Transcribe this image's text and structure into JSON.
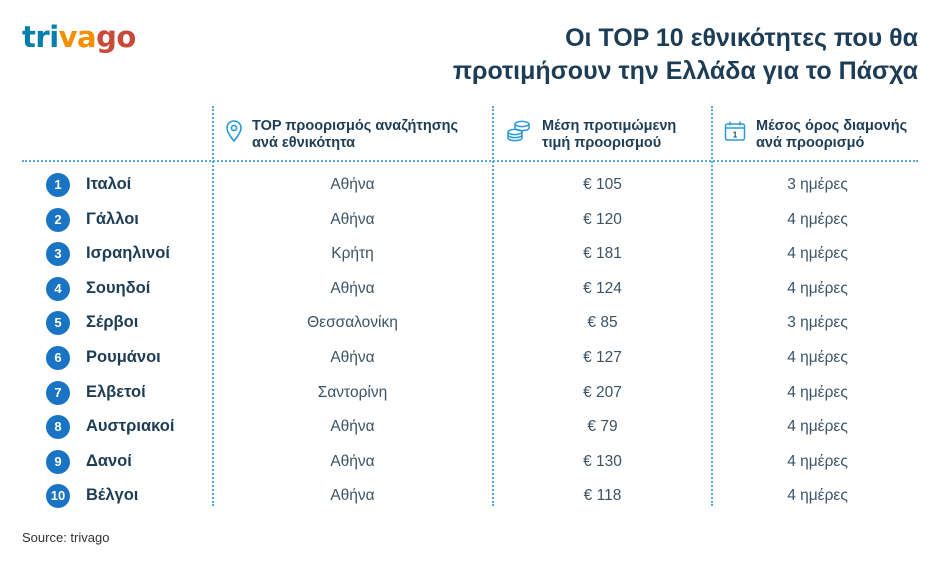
{
  "logo": {
    "text": "trivago",
    "letters": [
      {
        "ch": "t",
        "color": "#007fad"
      },
      {
        "ch": "r",
        "color": "#007fad"
      },
      {
        "ch": "i",
        "color": "#007fad"
      },
      {
        "ch": "v",
        "color": "#f48f00"
      },
      {
        "ch": "a",
        "color": "#f48f00"
      },
      {
        "ch": "g",
        "color": "#c94a38"
      },
      {
        "ch": "o",
        "color": "#c94a38"
      }
    ]
  },
  "title": {
    "line1": "Οι TOP 10 εθνικότητες που θα",
    "line2": "προτιμήσουν την Ελλάδα για το Πάσχα"
  },
  "headers": {
    "destination": {
      "line1": "TOP προορισμός αναζήτησης",
      "line2": "ανά εθνικότητα",
      "icon": "map-pin-icon"
    },
    "price": {
      "line1": "Μέση προτιμώμενη",
      "line2": "τιμή προορισμού",
      "icon": "coins-icon"
    },
    "stay": {
      "line1": "Μέσος όρος διαμονής",
      "line2": "ανά προορισμό",
      "icon": "calendar-icon",
      "icon_text": "1"
    }
  },
  "rows": [
    {
      "rank": "1",
      "nationality": "Ιταλοί",
      "destination": "Αθήνα",
      "price": "€ 105",
      "stay": "3 ημέρες"
    },
    {
      "rank": "2",
      "nationality": "Γάλλοι",
      "destination": "Αθήνα",
      "price": "€ 120",
      "stay": "4 ημέρες"
    },
    {
      "rank": "3",
      "nationality": "Ισραηλινοί",
      "destination": "Κρήτη",
      "price": "€ 181",
      "stay": "4 ημέρες"
    },
    {
      "rank": "4",
      "nationality": "Σουηδοί",
      "destination": "Αθήνα",
      "price": "€ 124",
      "stay": "4 ημέρες"
    },
    {
      "rank": "5",
      "nationality": "Σέρβοι",
      "destination": "Θεσσαλονίκη",
      "price": "€ 85",
      "stay": "3 ημέρες"
    },
    {
      "rank": "6",
      "nationality": "Ρουμάνοι",
      "destination": "Αθήνα",
      "price": "€ 127",
      "stay": "4 ημέρες"
    },
    {
      "rank": "7",
      "nationality": "Ελβετοί",
      "destination": "Σαντορίνη",
      "price": "€ 207",
      "stay": "4 ημέρες"
    },
    {
      "rank": "8",
      "nationality": "Αυστριακοί",
      "destination": "Αθήνα",
      "price": "€ 79",
      "stay": "4 ημέρες"
    },
    {
      "rank": "9",
      "nationality": "Δανοί",
      "destination": "Αθήνα",
      "price": "€ 130",
      "stay": "4 ημέρες"
    },
    {
      "rank": "10",
      "nationality": "Βέλγοι",
      "destination": "Αθήνα",
      "price": "€ 118",
      "stay": "4 ημέρες"
    }
  ],
  "source": "Source: trivago",
  "colors": {
    "accent": "#1a74c4",
    "text": "#1d3d57",
    "divider": "#5aa8d8"
  }
}
